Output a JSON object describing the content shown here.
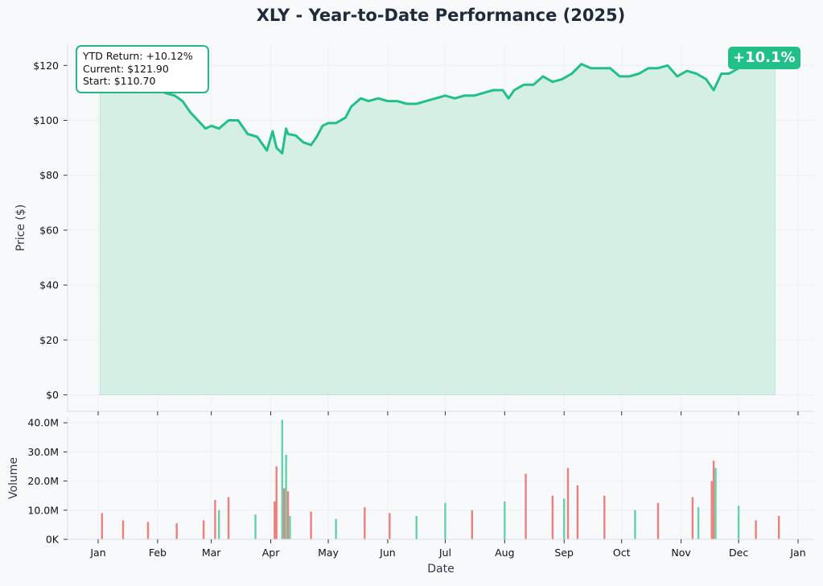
{
  "chart_data": [
    {
      "type": "area",
      "title": "XLY - Year-to-Date Performance (2025)",
      "ylabel": "Price ($)",
      "ylim": [
        -6,
        128
      ],
      "yticks": [
        0,
        20,
        40,
        60,
        80,
        100,
        120
      ],
      "ytick_labels": [
        "$0",
        "$20",
        "$40",
        "$60",
        "$80",
        "$100",
        "$120"
      ],
      "grid": true,
      "line_color": "#22c089",
      "fill_color": "#d5efe5",
      "annotation": {
        "lines": [
          "YTD Return: +10.12%",
          "Current: $121.90",
          "Start: $110.70"
        ],
        "placement": "top-left"
      },
      "badge": {
        "text": "+10.1%",
        "color": "#22c089",
        "placement": "top-right"
      },
      "series": [
        {
          "x": [
            "2025-01-02",
            "2025-01-06",
            "2025-01-10",
            "2025-01-15",
            "2025-01-20",
            "2025-01-24",
            "2025-01-28",
            "2025-02-01",
            "2025-02-05",
            "2025-02-10",
            "2025-02-14",
            "2025-02-18",
            "2025-02-22",
            "2025-02-26",
            "2025-03-01",
            "2025-03-05",
            "2025-03-10",
            "2025-03-15",
            "2025-03-20",
            "2025-03-25",
            "2025-03-30",
            "2025-04-02",
            "2025-04-04",
            "2025-04-07",
            "2025-04-09",
            "2025-04-10",
            "2025-04-14",
            "2025-04-18",
            "2025-04-22",
            "2025-04-25",
            "2025-04-28",
            "2025-05-01",
            "2025-05-05",
            "2025-05-10",
            "2025-05-13",
            "2025-05-18",
            "2025-05-22",
            "2025-05-27",
            "2025-06-01",
            "2025-06-06",
            "2025-06-11",
            "2025-06-16",
            "2025-06-21",
            "2025-06-26",
            "2025-07-01",
            "2025-07-06",
            "2025-07-11",
            "2025-07-16",
            "2025-07-21",
            "2025-07-26",
            "2025-07-31",
            "2025-08-03",
            "2025-08-06",
            "2025-08-11",
            "2025-08-16",
            "2025-08-21",
            "2025-08-26",
            "2025-08-31",
            "2025-09-05",
            "2025-09-10",
            "2025-09-15",
            "2025-09-20",
            "2025-09-25",
            "2025-09-30",
            "2025-10-05",
            "2025-10-10",
            "2025-10-15",
            "2025-10-20",
            "2025-10-25",
            "2025-10-30",
            "2025-11-04",
            "2025-11-09",
            "2025-11-14",
            "2025-11-18",
            "2025-11-22",
            "2025-11-26",
            "2025-12-01",
            "2025-12-06",
            "2025-12-10",
            "2025-12-16",
            "2025-12-20"
          ],
          "values": [
            110.7,
            113.0,
            112.0,
            110.5,
            113.0,
            112.5,
            113.0,
            112.0,
            110.0,
            109.0,
            107.0,
            103.0,
            100.0,
            97.0,
            98.0,
            97.0,
            100.0,
            100.0,
            95.0,
            94.0,
            89.0,
            96.0,
            90.0,
            88.0,
            97.0,
            95.0,
            94.5,
            92.0,
            91.0,
            94.0,
            98.0,
            99.0,
            99.0,
            101.0,
            105.0,
            108.0,
            107.0,
            108.0,
            107.0,
            107.0,
            106.0,
            106.0,
            107.0,
            108.0,
            109.0,
            108.0,
            109.0,
            109.0,
            110.0,
            111.0,
            111.0,
            108.0,
            111.0,
            113.0,
            113.0,
            116.0,
            114.0,
            115.0,
            117.0,
            120.5,
            119.0,
            119.0,
            119.0,
            116.0,
            116.0,
            117.0,
            119.0,
            119.0,
            120.0,
            116.0,
            118.0,
            117.0,
            115.0,
            111.0,
            117.0,
            117.0,
            119.0,
            119.5,
            119.0,
            121.5,
            121.9
          ]
        }
      ]
    },
    {
      "type": "bar",
      "xlabel": "Date",
      "ylabel": "Volume",
      "ylim": [
        0,
        42
      ],
      "yticks": [
        0,
        10,
        20,
        30,
        40
      ],
      "ytick_labels": [
        "0K",
        "10.0M",
        "20.0M",
        "30.0M",
        "40.0M"
      ],
      "unit": "millions of shares",
      "grid": true,
      "x_month_ticks": [
        "Jan",
        "Feb",
        "Mar",
        "Apr",
        "May",
        "Jun",
        "Jul",
        "Aug",
        "Sep",
        "Oct",
        "Nov",
        "Dec",
        "Jan"
      ],
      "colors": {
        "up": "#67d1a9",
        "down": "#ee7f7f"
      },
      "series": [
        {
          "x": [
            "2025-01-03",
            "2025-01-14",
            "2025-01-27",
            "2025-02-11",
            "2025-02-25",
            "2025-03-03",
            "2025-03-05",
            "2025-03-10",
            "2025-03-24",
            "2025-04-03",
            "2025-04-04",
            "2025-04-07",
            "2025-04-08",
            "2025-04-09",
            "2025-04-10",
            "2025-04-11",
            "2025-04-22",
            "2025-05-05",
            "2025-05-20",
            "2025-06-02",
            "2025-06-16",
            "2025-07-01",
            "2025-07-15",
            "2025-08-01",
            "2025-08-12",
            "2025-08-26",
            "2025-09-01",
            "2025-09-03",
            "2025-09-08",
            "2025-09-22",
            "2025-10-08",
            "2025-10-20",
            "2025-11-07",
            "2025-11-10",
            "2025-11-17",
            "2025-11-18",
            "2025-11-19",
            "2025-12-01",
            "2025-12-10",
            "2025-12-22"
          ],
          "values": [
            9.0,
            6.5,
            6.0,
            5.5,
            6.5,
            13.5,
            10.0,
            14.5,
            8.5,
            13.0,
            25.0,
            41.0,
            17.5,
            29.0,
            16.5,
            8.0,
            9.5,
            7.0,
            11.0,
            9.0,
            8.0,
            12.5,
            10.0,
            13.0,
            22.5,
            15.0,
            14.0,
            24.5,
            18.5,
            15.0,
            10.0,
            12.5,
            14.5,
            11.0,
            20.0,
            27.0,
            24.5,
            11.5,
            6.5,
            8.0
          ],
          "direction": [
            "down",
            "down",
            "down",
            "down",
            "down",
            "down",
            "up",
            "down",
            "up",
            "down",
            "down",
            "up",
            "down",
            "up",
            "down",
            "up",
            "down",
            "up",
            "down",
            "down",
            "up",
            "up",
            "down",
            "up",
            "down",
            "down",
            "up",
            "down",
            "down",
            "down",
            "up",
            "down",
            "down",
            "up",
            "down",
            "down",
            "up",
            "up",
            "down",
            "down"
          ]
        }
      ]
    }
  ]
}
